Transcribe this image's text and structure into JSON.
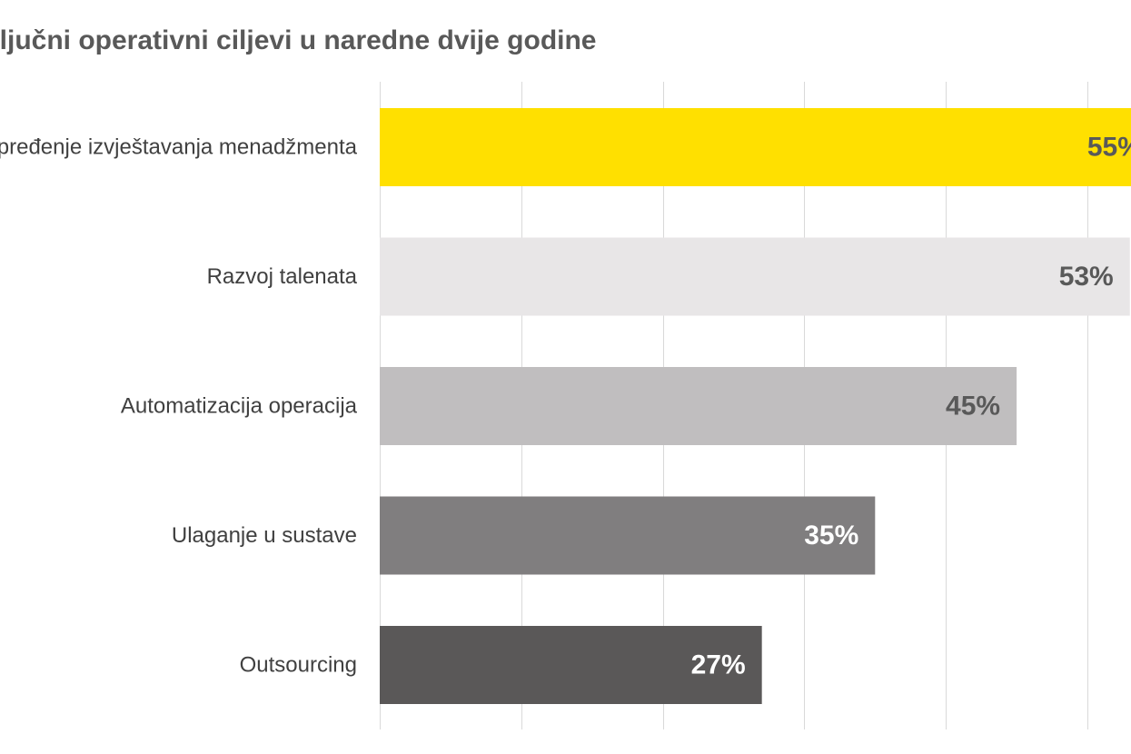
{
  "chart_data": {
    "type": "bar",
    "orientation": "horizontal",
    "title": "Ključni operativni ciljevi u naredne dvije godine",
    "categories": [
      "Unapređenje izvještavanja menadžmenta",
      "Razvoj talenata",
      "Automatizacija operacija",
      "Ulaganje u sustave",
      "Outsourcing"
    ],
    "values": [
      55,
      53,
      45,
      35,
      27
    ],
    "value_labels": [
      "55%",
      "53%",
      "45%",
      "35%",
      "27%"
    ],
    "bar_colors": [
      "#FFE000",
      "#E8E6E7",
      "#C0BEBF",
      "#807E7F",
      "#5A5858"
    ],
    "label_colors": [
      "#595959",
      "#595959",
      "#595959",
      "#FFFFFF",
      "#FFFFFF"
    ],
    "gridline_color": "#D9D9D9",
    "xlabel": "",
    "ylabel": "",
    "xlim": [
      0,
      50
    ],
    "grid": true,
    "legend": "none"
  }
}
